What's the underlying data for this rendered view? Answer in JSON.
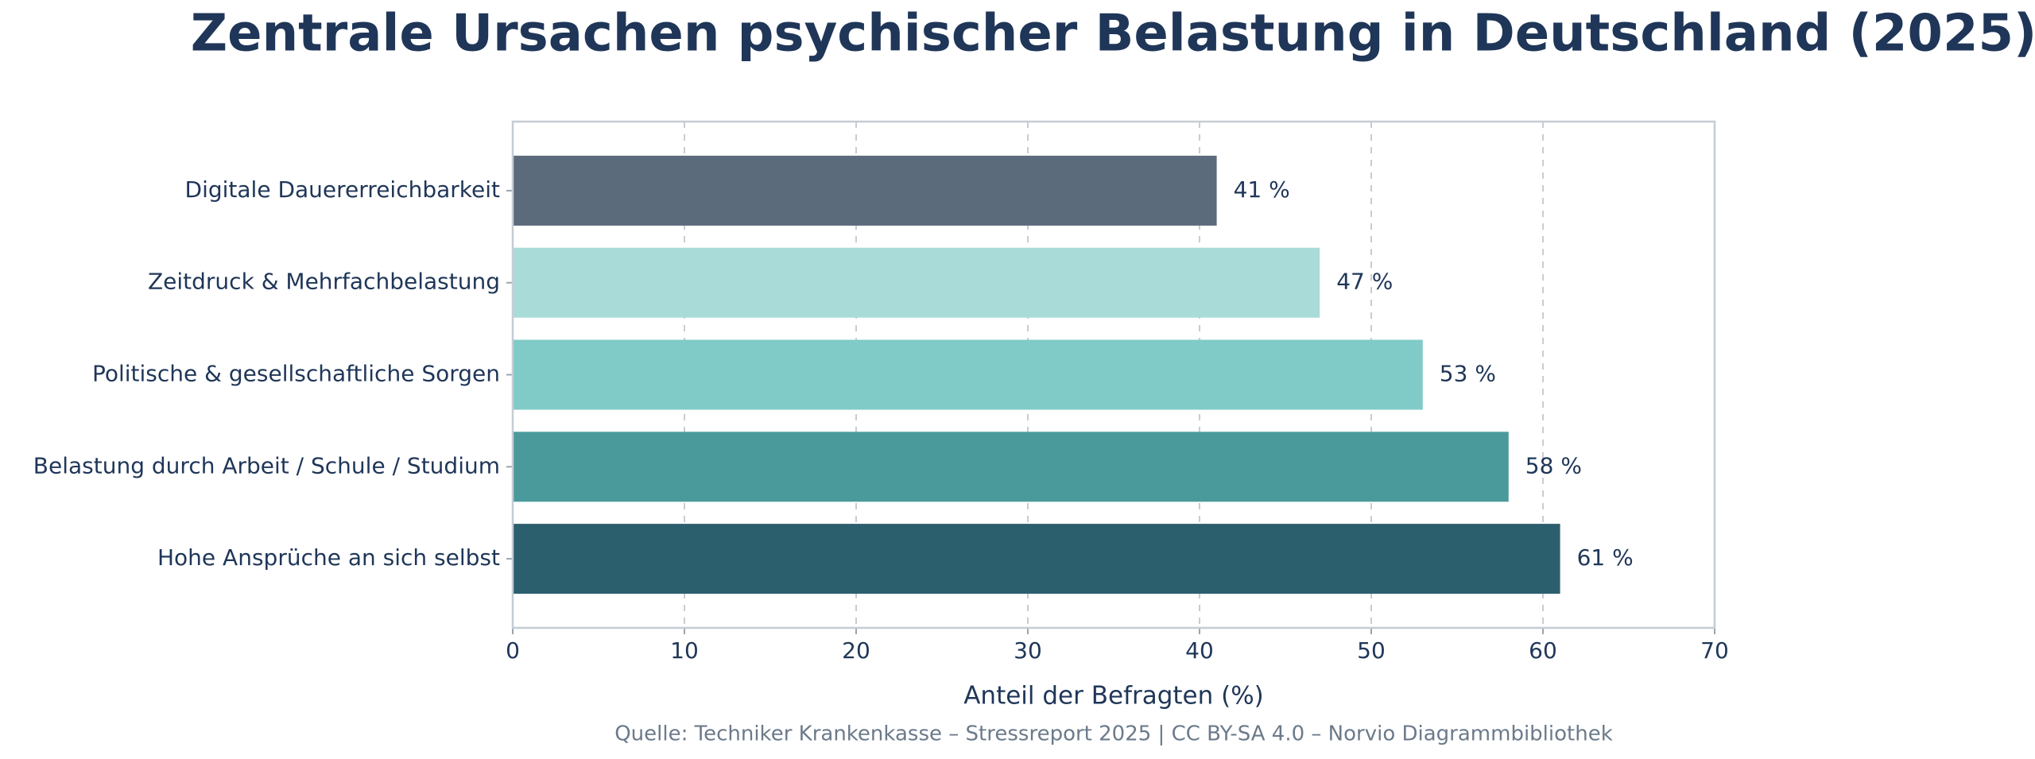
{
  "chart_data": {
    "type": "bar",
    "orientation": "horizontal",
    "title": "Zentrale Ursachen psychischer Belastung in Deutschland (2025)",
    "categories": [
      "Digitale Dauererreichbarkeit",
      "Zeitdruck & Mehrfachbelastung",
      "Politische & gesellschaftliche Sorgen",
      "Belastung durch Arbeit / Schule / Studium",
      "Hohe Ansprüche an sich selbst"
    ],
    "values": [
      41,
      47,
      53,
      58,
      61
    ],
    "value_labels": [
      "41 %",
      "47 %",
      "53 %",
      "58 %",
      "61 %"
    ],
    "colors": [
      "#5b6b7c",
      "#a9dcd9",
      "#80cbc7",
      "#4a9a9c",
      "#2c5f6e"
    ],
    "xlabel": "Anteil der Befragten (%)",
    "xlim": [
      0,
      70
    ],
    "xticks": [
      0,
      10,
      20,
      30,
      40,
      50,
      60,
      70
    ],
    "grid": true,
    "source": "Quelle: Techniker Krankenkasse – Stressreport 2025 | CC BY-SA 4.0 – Norvio Diagrammbibliothek"
  }
}
